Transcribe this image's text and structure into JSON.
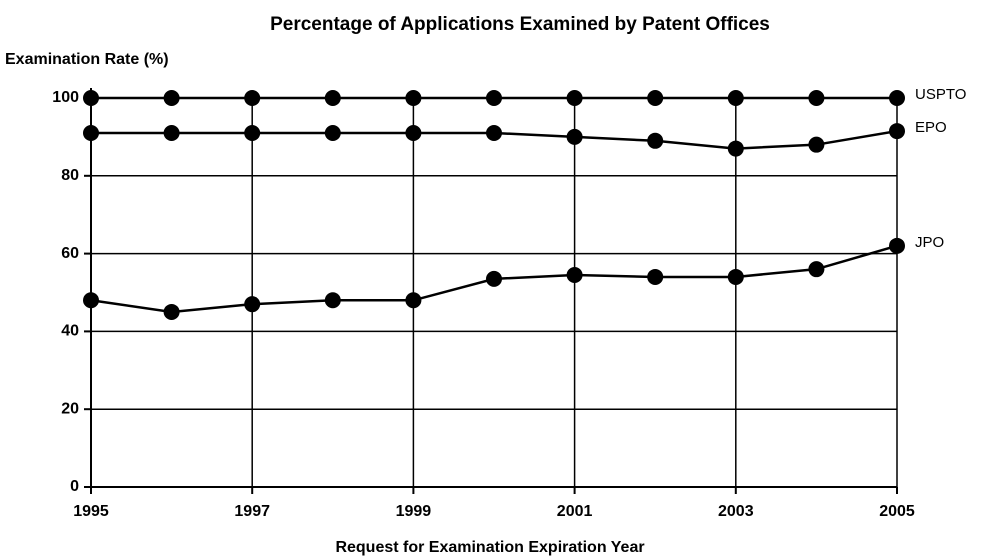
{
  "chart_data": {
    "type": "line",
    "title": "Percentage of Applications Examined by Patent Offices",
    "ylabel": "Examination Rate (%)",
    "xlabel": "Request for Examination Expiration Year",
    "x": [
      1995,
      1996,
      1997,
      1998,
      1999,
      2000,
      2001,
      2002,
      2003,
      2004,
      2005
    ],
    "series": [
      {
        "name": "USPTO",
        "color": "#000000",
        "values": [
          100,
          100,
          100,
          100,
          100,
          100,
          100,
          100,
          100,
          100,
          100
        ]
      },
      {
        "name": "EPO",
        "color": "#000000",
        "values": [
          91,
          91,
          91,
          91,
          91,
          91,
          90,
          89,
          87,
          88,
          91.5
        ]
      },
      {
        "name": "JPO",
        "color": "#000000",
        "values": [
          48,
          45,
          47,
          48,
          48,
          53.5,
          54.5,
          54,
          54,
          56,
          62
        ]
      }
    ],
    "xlim": [
      1995,
      2005
    ],
    "xticks": [
      1995,
      1997,
      1999,
      2001,
      2003,
      2005
    ],
    "ylim": [
      0,
      100
    ],
    "yticks": [
      0,
      20,
      40,
      60,
      80,
      100
    ],
    "grid": true
  }
}
